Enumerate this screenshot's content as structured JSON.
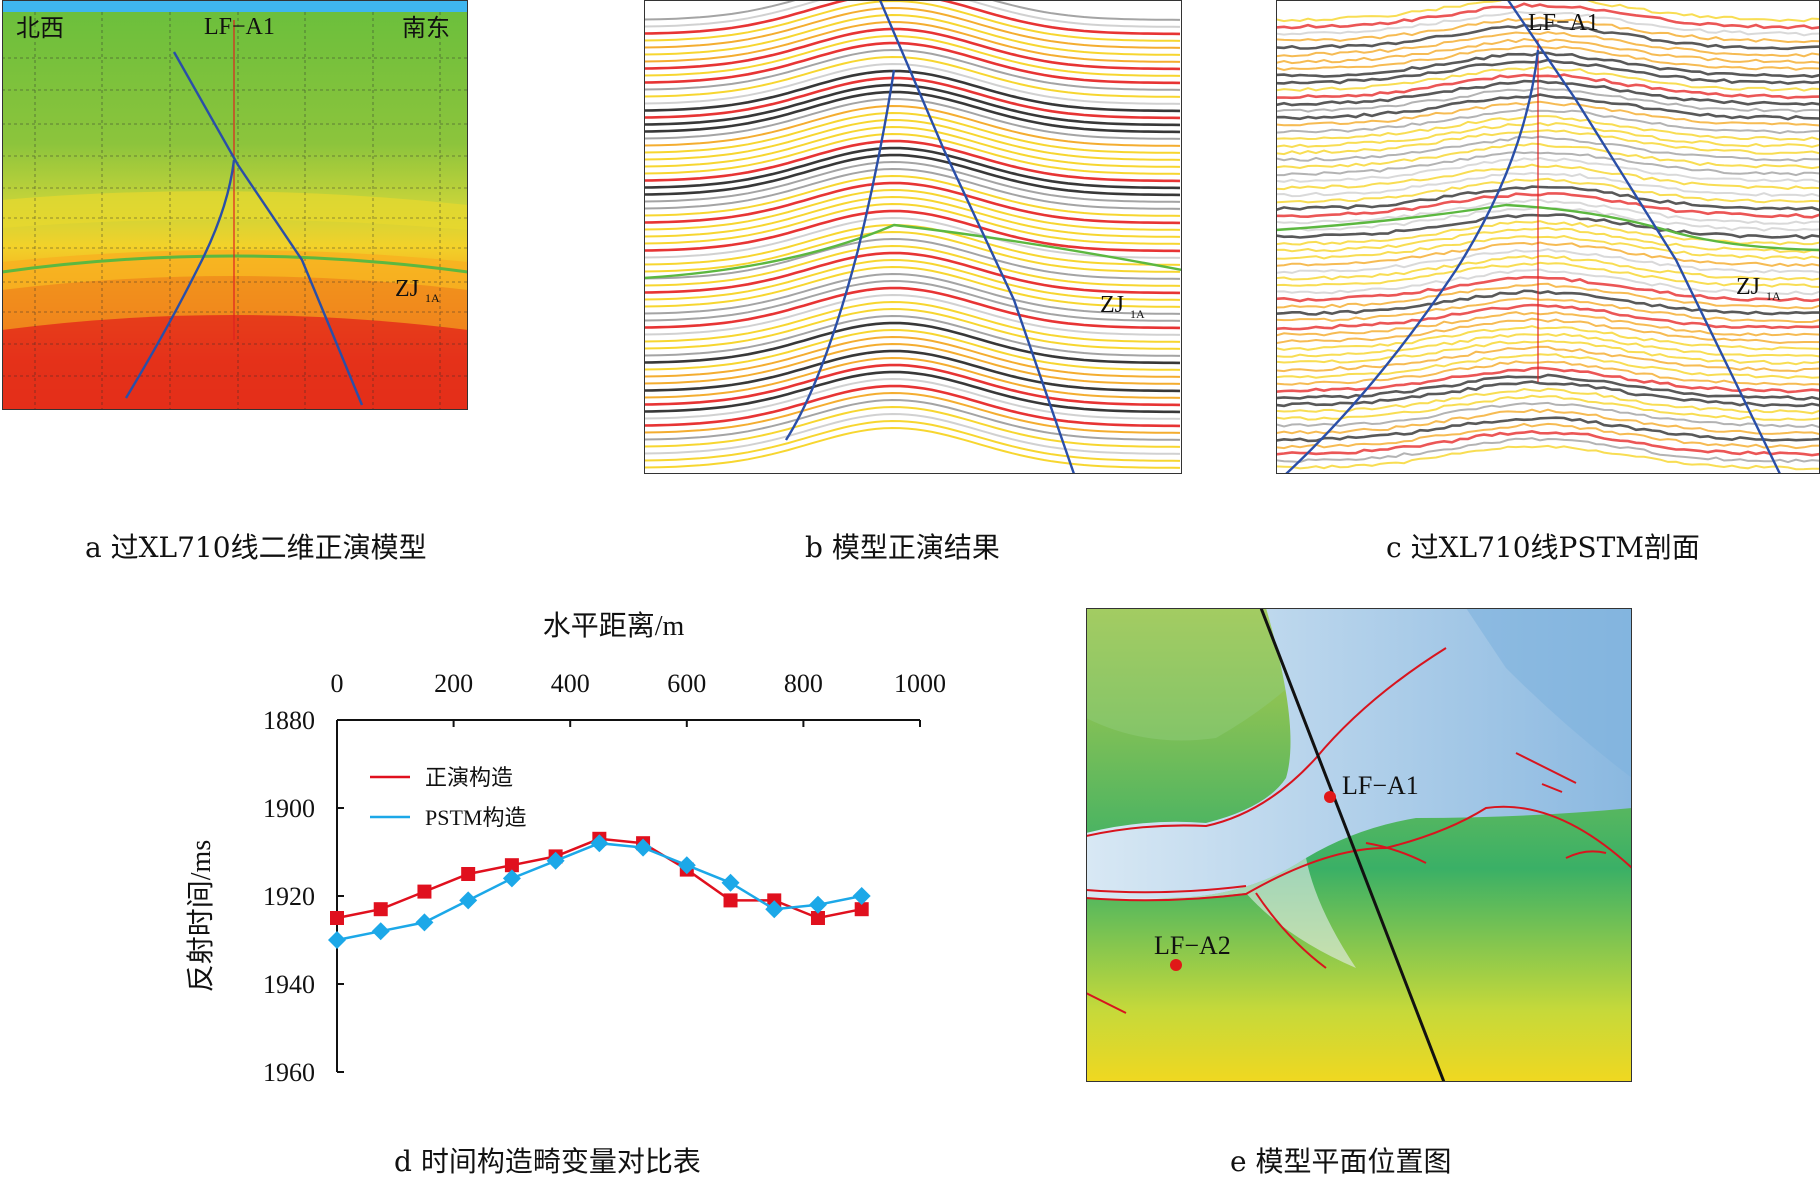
{
  "panel_a": {
    "label_left": "北西",
    "label_well": "LF−A1",
    "label_right": "南东",
    "horizon_main": "ZJ",
    "horizon_sub": "1A",
    "caption": "a  过XL710线二维正演模型"
  },
  "panel_b": {
    "horizon_main": "ZJ",
    "horizon_sub": "1A",
    "caption": "b  模型正演结果"
  },
  "panel_c": {
    "label_well": "LF−A1",
    "horizon_main": "ZJ",
    "horizon_sub": "1A",
    "caption": "c  过XL710线PSTM剖面"
  },
  "panel_d": {
    "caption": "d  时间构造畸变量对比表"
  },
  "panel_e": {
    "well_1": "LF−A1",
    "well_2": "LF−A2",
    "caption": "e  模型平面位置图"
  },
  "colors": {
    "forward": "#e0101e",
    "pstm": "#1ca8e8",
    "fault": "#2a4fa8",
    "horizon": "#5cb840"
  },
  "chart_data": {
    "type": "line",
    "xlabel": "水平距离/m",
    "ylabel": "反射时间/ms",
    "xlim": [
      0,
      1000
    ],
    "ylim": [
      1880,
      1960
    ],
    "x_ticks": [
      "0",
      "200",
      "400",
      "600",
      "800",
      "1000"
    ],
    "y_ticks": [
      "1880",
      "1900",
      "1920",
      "1940",
      "1960"
    ],
    "x_axis_position": "top",
    "y_inverted": true,
    "legend_position": "top-left",
    "series": [
      {
        "name": "正演构造",
        "marker": "square",
        "x": [
          0,
          75,
          150,
          225,
          300,
          375,
          450,
          525,
          600,
          675,
          750,
          825,
          900
        ],
        "y": [
          1925,
          1923,
          1919,
          1915,
          1913,
          1911,
          1907,
          1908,
          1914,
          1921,
          1921,
          1925,
          1923
        ]
      },
      {
        "name": "PSTM构造",
        "marker": "diamond",
        "x": [
          0,
          75,
          150,
          225,
          300,
          375,
          450,
          525,
          600,
          675,
          750,
          825,
          900
        ],
        "y": [
          1930,
          1928,
          1926,
          1921,
          1916,
          1912,
          1908,
          1909,
          1913,
          1917,
          1923,
          1922,
          1920
        ]
      }
    ]
  }
}
